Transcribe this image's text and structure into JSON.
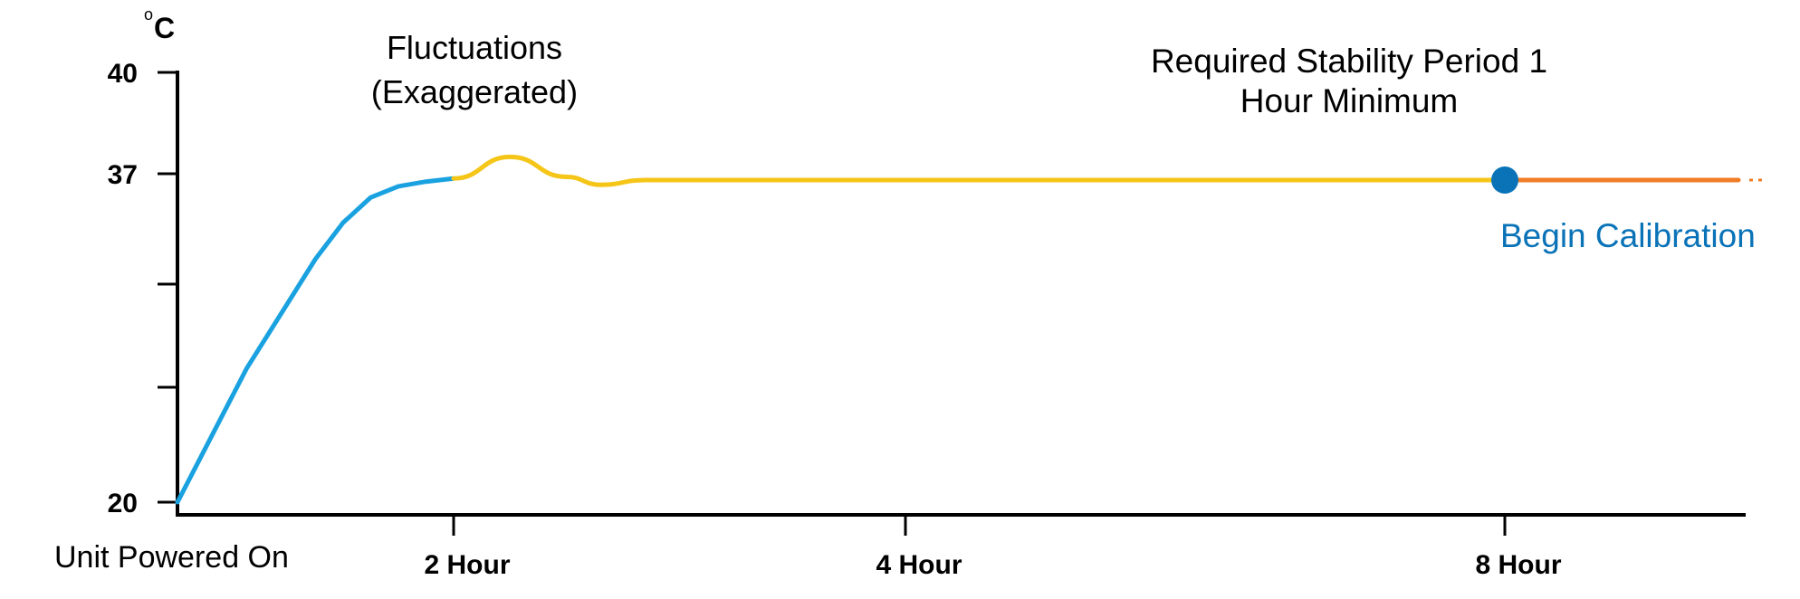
{
  "chart_data": {
    "type": "line",
    "title": "",
    "xlabel": "",
    "ylabel": "°C",
    "y_unit_degree": "o",
    "y_unit_letter": "C",
    "ylim": [
      20,
      40
    ],
    "y_ticks": [
      {
        "value": 20,
        "label": "20"
      },
      {
        "value": 25,
        "label": ""
      },
      {
        "value": 30,
        "label": ""
      },
      {
        "value": 37,
        "label": "37"
      },
      {
        "value": 40,
        "label": "40"
      }
    ],
    "x_ticks": [
      {
        "value": 2,
        "label": "2 Hour"
      },
      {
        "value": 4,
        "label": "4 Hour"
      },
      {
        "value": 8,
        "label": "8 Hour"
      }
    ],
    "x_origin_label": "Unit Powered On",
    "series": [
      {
        "color": "#1aa2e0",
        "x": [
          0,
          0.5,
          1.0,
          1.2,
          1.4,
          1.6,
          1.8,
          2.0
        ],
        "y": [
          20,
          25.9,
          31.6,
          33.9,
          35.5,
          36.2,
          36.5,
          36.7
        ]
      },
      {
        "color": "#f5c518",
        "x": [
          2.0,
          2.25,
          2.5,
          2.65,
          2.85,
          4,
          8
        ],
        "y": [
          36.7,
          37.5,
          36.8,
          36.3,
          36.6,
          36.6,
          36.6
        ]
      },
      {
        "color": "#f07c25",
        "x": [
          8,
          9
        ],
        "y": [
          36.6,
          36.6
        ]
      }
    ],
    "markers": [
      {
        "x": 8,
        "y": 36.6,
        "color": "#0a73b8",
        "label": "Begin Calibration",
        "label_color": "#0a73b8"
      }
    ],
    "annotations": [
      {
        "lines": [
          "Fluctuations",
          "(Exaggerated)"
        ]
      },
      {
        "lines": [
          "Required Stability Period 1",
          "Hour Minimum"
        ]
      }
    ],
    "continuation_color": "#f07c25",
    "grid": false,
    "legend": "none"
  }
}
